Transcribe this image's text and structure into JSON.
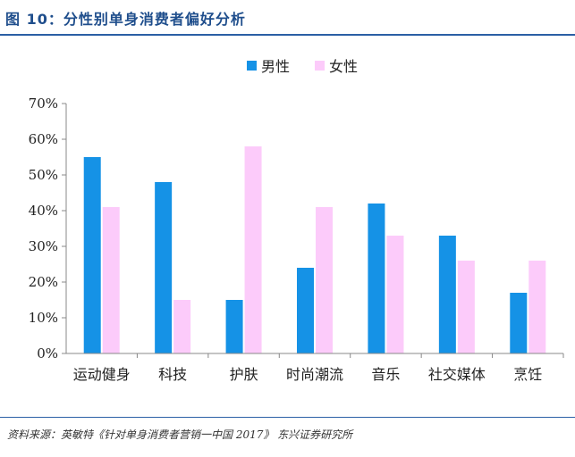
{
  "header": {
    "title": "图 10：分性别单身消费者偏好分析"
  },
  "footer": {
    "source": "资料来源：英敏特《针对单身消费者营销一中国 2017》  东兴证券研究所"
  },
  "colors": {
    "male": "#1592e6",
    "female": "#fccbfa",
    "title": "#1f4e8c",
    "rule": "#2b5fa5"
  },
  "chart_data": {
    "type": "bar",
    "title": "",
    "xlabel": "",
    "ylabel": "",
    "categories": [
      "运动健身",
      "科技",
      "护肤",
      "时尚潮流",
      "音乐",
      "社交媒体",
      "烹饪"
    ],
    "series": [
      {
        "name": "男性",
        "values": [
          55,
          48,
          15,
          24,
          42,
          33,
          17
        ]
      },
      {
        "name": "女性",
        "values": [
          41,
          15,
          58,
          41,
          33,
          26,
          26
        ]
      }
    ],
    "ylim": [
      0,
      70
    ],
    "yticks": [
      "0%",
      "10%",
      "20%",
      "30%",
      "40%",
      "50%",
      "60%",
      "70%"
    ],
    "grid": false,
    "legend": "top-center"
  }
}
